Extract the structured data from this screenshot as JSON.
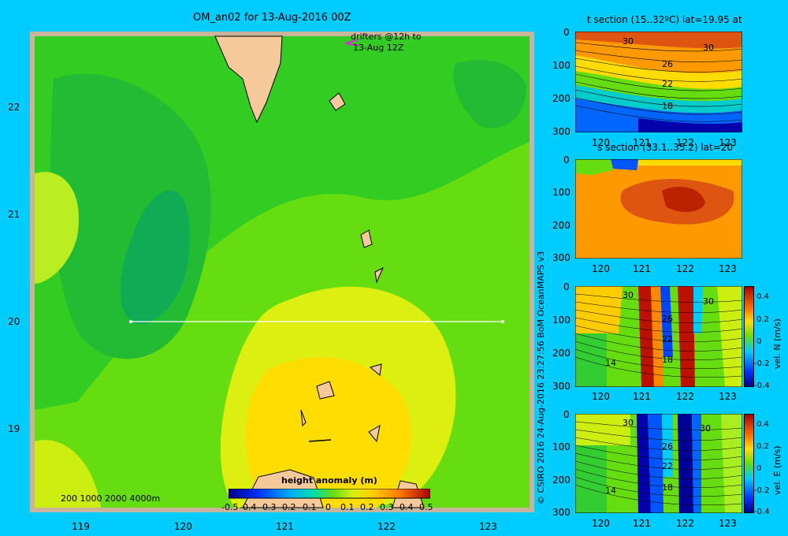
{
  "main_map": {
    "title": "OM_an02 for 13-Aug-2016 00Z",
    "x_ticks": [
      "119",
      "120",
      "121",
      "122",
      "123"
    ],
    "y_ticks": [
      "22",
      "21",
      "20",
      "19"
    ],
    "drifters_line1": "drifters @12h to",
    "drifters_line2": "13-Aug 12Z",
    "bathy_legend": "200  1000  2000  4000m",
    "section_line": {
      "lat": 20,
      "lon_start": 119.5,
      "lon_end": 123.2
    },
    "colorbar": {
      "title": "height anomaly (m)",
      "ticks": [
        "-0.5",
        "-0.4",
        "-0.3",
        "-0.2",
        "-0.1",
        "0",
        "0.1",
        "0.2",
        "0.3",
        "0.4",
        "0.5"
      ],
      "range": [
        -0.5,
        0.5
      ]
    }
  },
  "panels": [
    {
      "id": "t",
      "title": "t section (15..32ºC) lat=19.95 at",
      "y_ticks": [
        "0",
        "100",
        "200",
        "300"
      ],
      "x_ticks": [
        "120",
        "121",
        "122",
        "123"
      ],
      "contour_labels": [
        "30",
        "30",
        "26",
        "22",
        "18"
      ]
    },
    {
      "id": "s",
      "title": "s section (33.1..35.2) lat=20",
      "y_ticks": [
        "0",
        "100",
        "200",
        "300"
      ],
      "x_ticks": [
        "120",
        "121",
        "122",
        "123"
      ],
      "contour_labels": []
    },
    {
      "id": "vn",
      "title": "",
      "y_ticks": [
        "0",
        "100",
        "200",
        "300"
      ],
      "x_ticks": [
        "120",
        "121",
        "122",
        "123"
      ],
      "contour_labels": [
        "30",
        "30",
        "26",
        "22",
        "18",
        "14"
      ],
      "colorbar_label": "vel. N  (m/s)",
      "colorbar_ticks": [
        "0.4",
        "0.2",
        "0",
        "-0.2",
        "-0.4"
      ]
    },
    {
      "id": "ve",
      "title": "",
      "y_ticks": [
        "0",
        "100",
        "200",
        "300"
      ],
      "x_ticks": [
        "120",
        "121",
        "122",
        "123"
      ],
      "contour_labels": [
        "30",
        "30",
        "26",
        "22",
        "18",
        "14"
      ],
      "colorbar_label": "vel. E  (m/s)",
      "colorbar_ticks": [
        "0.4",
        "0.2",
        "0",
        "-0.2",
        "-0.4"
      ]
    }
  ],
  "credit": "© CSIRO 2016   24-Aug-2016 23:27:56 BoM OceanMAPS v3",
  "colors": {
    "background": "#00ccff",
    "land": "#f5c99a",
    "frame": "#c8b49a",
    "section": "#ffffff",
    "drifter": "#cc33cc"
  }
}
